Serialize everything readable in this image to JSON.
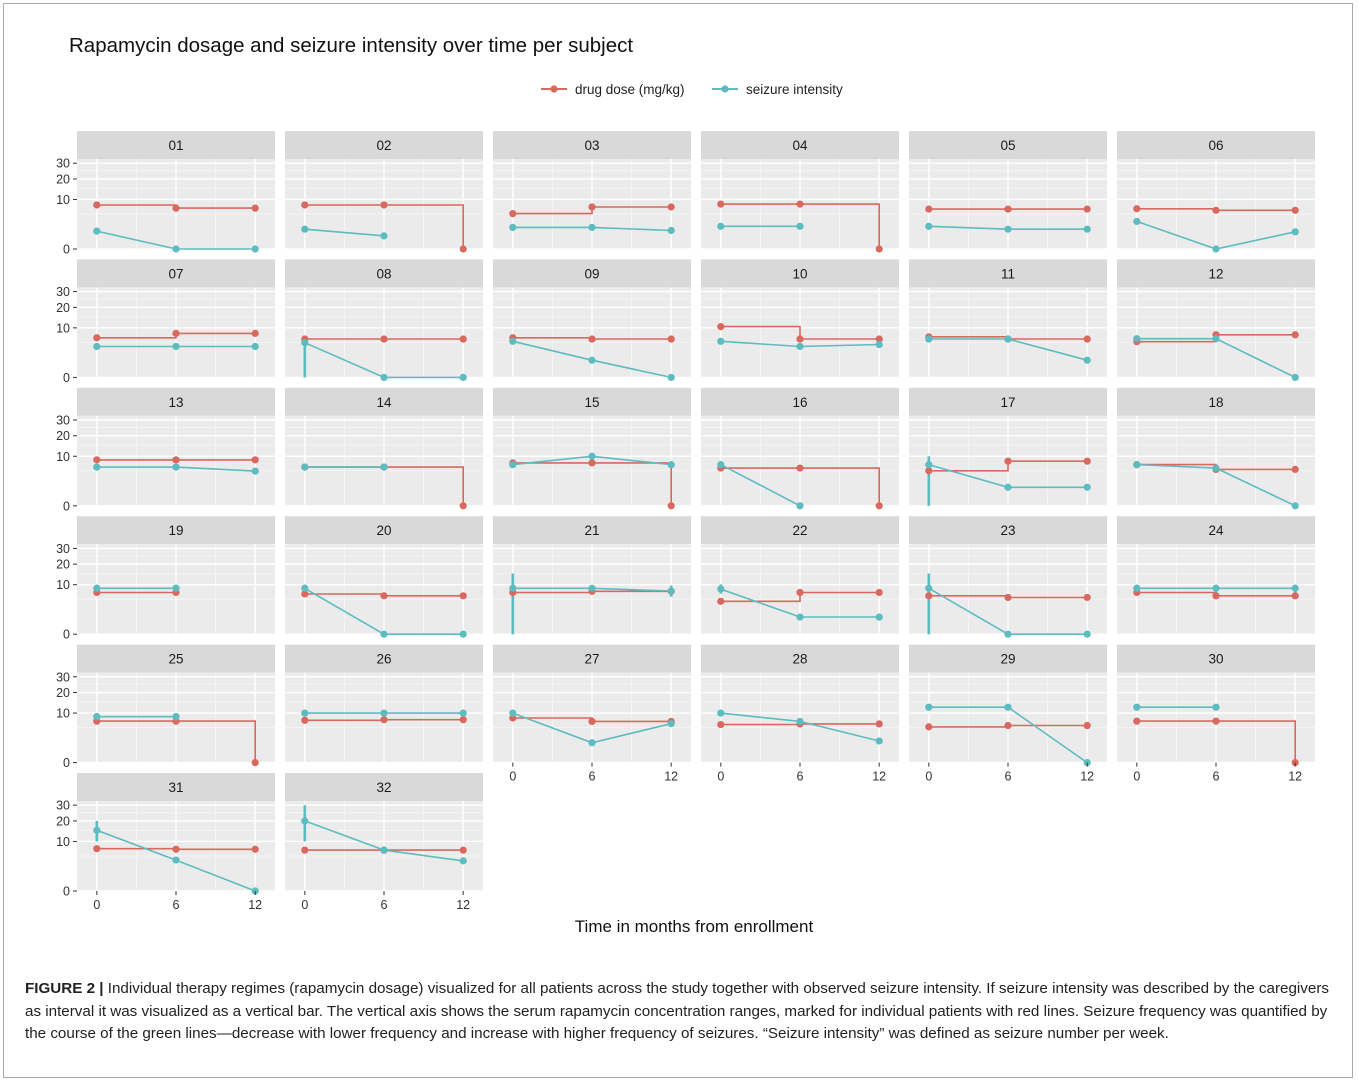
{
  "chart_data": {
    "type": "line",
    "title": "Rapamycin dosage and seizure intensity over time per subject",
    "xlabel": "Time in months from enrollment",
    "ylabel": "",
    "x_ticks": [
      0,
      6,
      12
    ],
    "y_ticks": [
      0,
      10,
      20,
      30
    ],
    "y_tick_labels": [
      "0",
      "10",
      "20",
      "30"
    ],
    "y_scale": "sqrt",
    "xlim": [
      -1.5,
      13.5
    ],
    "ylim": [
      0,
      33
    ],
    "grid": true,
    "legend_position": "top-center",
    "legend": [
      {
        "key": "dose",
        "label": "drug dose (mg/kg)",
        "color": "#d9685f"
      },
      {
        "key": "seizure",
        "label": "seizure intensity",
        "color": "#5cbcc0"
      }
    ],
    "x": [
      0,
      6,
      12
    ],
    "panels": [
      {
        "label": "01",
        "dose": [
          7.9,
          6.8,
          6.8
        ],
        "seizure": [
          1.3,
          0,
          0
        ],
        "seizure_range": [
          null,
          null,
          null
        ]
      },
      {
        "label": "02",
        "dose": [
          7.9,
          7.9,
          0
        ],
        "seizure": [
          1.6,
          0.7,
          null
        ],
        "seizure_range": [
          null,
          null,
          null
        ]
      },
      {
        "label": "03",
        "dose": [
          5.1,
          7.2,
          7.2
        ],
        "seizure": [
          1.9,
          1.9,
          1.4
        ],
        "seizure_range": [
          null,
          null,
          null
        ]
      },
      {
        "label": "04",
        "dose": [
          8.2,
          8.2,
          0
        ],
        "seizure": [
          2.1,
          2.1,
          null
        ],
        "seizure_range": [
          null,
          null,
          null
        ]
      },
      {
        "label": "05",
        "dose": [
          6.5,
          6.5,
          6.5
        ],
        "seizure": [
          2.1,
          1.6,
          1.6
        ],
        "seizure_range": [
          null,
          null,
          null
        ]
      },
      {
        "label": "06",
        "dose": [
          6.6,
          6.1,
          6.1
        ],
        "seizure": [
          3.1,
          0,
          1.2
        ],
        "seizure_range": [
          null,
          null,
          null
        ]
      },
      {
        "label": "07",
        "dose": [
          6.4,
          7.9,
          7.9
        ],
        "seizure": [
          3.9,
          3.9,
          3.9
        ],
        "seizure_range": [
          null,
          null,
          null
        ]
      },
      {
        "label": "08",
        "dose": [
          6.0,
          6.0,
          6.0
        ],
        "seizure": [
          4.9,
          0,
          0
        ],
        "seizure_range": [
          [
            0,
            4.9
          ],
          null,
          null
        ]
      },
      {
        "label": "09",
        "dose": [
          6.4,
          6.0,
          6.0
        ],
        "seizure": [
          5.3,
          1.2,
          0
        ],
        "seizure_range": [
          null,
          null,
          null
        ]
      },
      {
        "label": "10",
        "dose": [
          10.5,
          6.0,
          6.0
        ],
        "seizure": [
          5.3,
          3.9,
          4.4
        ],
        "seizure_range": [
          null,
          null,
          [
            3.6,
            5.2
          ]
        ]
      },
      {
        "label": "11",
        "dose": [
          6.7,
          6.0,
          6.0
        ],
        "seizure": [
          6.0,
          6.0,
          1.2
        ],
        "seizure_range": [
          null,
          null,
          null
        ]
      },
      {
        "label": "12",
        "dose": [
          5.2,
          7.4,
          7.4
        ],
        "seizure": [
          6.1,
          6.1,
          0
        ],
        "seizure_range": [
          null,
          null,
          null
        ]
      },
      {
        "label": "13",
        "dose": [
          8.6,
          8.6,
          8.6
        ],
        "seizure": [
          6.1,
          6.1,
          4.9
        ],
        "seizure_range": [
          null,
          null,
          null
        ]
      },
      {
        "label": "14",
        "dose": [
          6.1,
          6.1,
          0
        ],
        "seizure": [
          6.1,
          6.1,
          null
        ],
        "seizure_range": [
          null,
          null,
          null
        ]
      },
      {
        "label": "15",
        "dose": [
          7.5,
          7.5,
          0
        ],
        "seizure": [
          6.9,
          10.0,
          6.9
        ],
        "seizure_range": [
          null,
          null,
          null
        ]
      },
      {
        "label": "16",
        "dose": [
          5.8,
          5.8,
          0
        ],
        "seizure": [
          6.9,
          0,
          null
        ],
        "seizure_range": [
          null,
          null,
          null
        ]
      },
      {
        "label": "17",
        "dose": [
          5.0,
          8.1,
          8.1
        ],
        "seizure": [
          6.9,
          1.4,
          1.4
        ],
        "seizure_range": [
          [
            0,
            10.0
          ],
          null,
          null
        ]
      },
      {
        "label": "18",
        "dose": [
          6.9,
          5.4,
          5.4
        ],
        "seizure": [
          6.9,
          5.8,
          0
        ],
        "seizure_range": [
          null,
          null,
          null
        ]
      },
      {
        "label": "19",
        "dose": [
          7.1,
          7.1,
          null
        ],
        "seizure": [
          8.6,
          8.6,
          null
        ],
        "seizure_range": [
          [
            7.0,
            10.0
          ],
          [
            7.0,
            10.0
          ],
          null
        ]
      },
      {
        "label": "20",
        "dose": [
          6.6,
          6.0,
          6.0
        ],
        "seizure": [
          8.6,
          0,
          0
        ],
        "seizure_range": [
          [
            7.0,
            10.0
          ],
          null,
          null
        ]
      },
      {
        "label": "21",
        "dose": [
          7.1,
          7.5,
          7.5
        ],
        "seizure": [
          8.6,
          8.6,
          7.6
        ],
        "seizure_range": [
          [
            0,
            15.0
          ],
          null,
          [
            5.7,
            9.6
          ]
        ]
      },
      {
        "label": "22",
        "dose": [
          4.4,
          7.1,
          7.1
        ],
        "seizure": [
          8.3,
          1.2,
          1.2
        ],
        "seizure_range": [
          [
            6.7,
            10.1
          ],
          null,
          null
        ]
      },
      {
        "label": "23",
        "dose": [
          6.0,
          5.5,
          5.5
        ],
        "seizure": [
          8.6,
          0,
          0
        ],
        "seizure_range": [
          [
            0,
            15.0
          ],
          null,
          null
        ]
      },
      {
        "label": "24",
        "dose": [
          7.1,
          6.0,
          6.0
        ],
        "seizure": [
          8.6,
          8.6,
          8.6
        ],
        "seizure_range": [
          [
            7.0,
            10.0
          ],
          [
            7.0,
            10.0
          ],
          [
            7.0,
            10.0
          ]
        ]
      },
      {
        "label": "25",
        "dose": [
          7.0,
          7.0,
          0
        ],
        "seizure": [
          8.6,
          8.6,
          null
        ],
        "seizure_range": [
          [
            7.0,
            10.0
          ],
          [
            7.0,
            10.0
          ],
          null
        ]
      },
      {
        "label": "26",
        "dose": [
          7.3,
          7.5,
          7.5
        ],
        "seizure": [
          10.0,
          10.0,
          10.0
        ],
        "seizure_range": [
          null,
          null,
          null
        ]
      },
      {
        "label": "27",
        "dose": [
          8.1,
          6.9,
          6.9
        ],
        "seizure": [
          10.0,
          1.6,
          6.2
        ],
        "seizure_range": [
          null,
          null,
          null
        ]
      },
      {
        "label": "28",
        "dose": [
          5.9,
          6.1,
          6.1
        ],
        "seizure": [
          10.0,
          6.9,
          1.9
        ],
        "seizure_range": [
          null,
          null,
          null
        ]
      },
      {
        "label": "29",
        "dose": [
          5.2,
          5.6,
          5.6
        ],
        "seizure": [
          12.5,
          12.5,
          0
        ],
        "seizure_range": [
          [
            11.0,
            14.0
          ],
          [
            11.0,
            14.0
          ],
          null
        ]
      },
      {
        "label": "30",
        "dose": [
          7.0,
          7.0,
          0
        ],
        "seizure": [
          12.5,
          12.5,
          null
        ],
        "seizure_range": [
          [
            11.0,
            14.0
          ],
          [
            11.0,
            14.0
          ],
          null
        ]
      },
      {
        "label": "31",
        "dose": [
          7.3,
          7.1,
          7.1
        ],
        "seizure": [
          15.0,
          3.9,
          0
        ],
        "seizure_range": [
          [
            10.0,
            20.0
          ],
          null,
          null
        ]
      },
      {
        "label": "32",
        "dose": [
          6.8,
          6.8,
          6.8
        ],
        "seizure": [
          20.0,
          6.8,
          3.7
        ],
        "seizure_range": [
          [
            10.0,
            30.0
          ],
          null,
          null
        ]
      }
    ]
  },
  "caption": {
    "label": "FIGURE 2 |",
    "text": "Individual therapy regimes (rapamycin dosage) visualized for all patients across the study together with observed seizure intensity. If seizure intensity was described by the caregivers as interval it was visualized as a vertical bar. The vertical axis shows the serum rapamycin concentration ranges, marked for individual patients with red lines. Seizure frequency was quantified by the course of the green lines—decrease with lower frequency and increase with higher frequency of seizures. “Seizure intensity” was defined as seizure number per week."
  }
}
